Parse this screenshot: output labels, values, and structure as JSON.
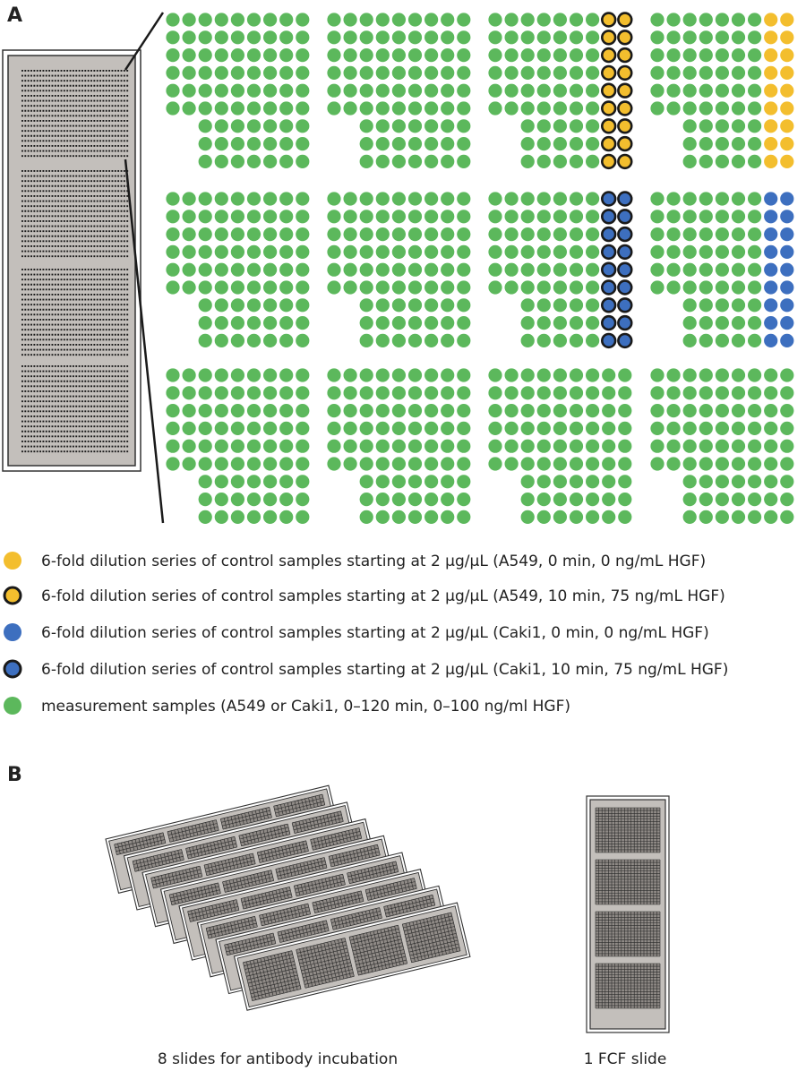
{
  "panels": {
    "a_label": "A",
    "b_label": "B"
  },
  "colors": {
    "green": "#5cb85c",
    "yellow": "#f3be2e",
    "blue": "#3d6fbf",
    "outline": "#1a1a1a",
    "slide_fill": "#c3bfbb",
    "slide_edge": "#333333",
    "spot": "#1a1a1a"
  },
  "legend": [
    {
      "marker": "yellow",
      "outlined": false,
      "text": "6-fold dilution series of control samples starting at 2 µg/µL (A549, 0 min, 0 ng/mL HGF)"
    },
    {
      "marker": "yellow",
      "outlined": true,
      "text": "6-fold dilution series of control samples starting at 2 µg/µL (A549, 10 min, 75 ng/mL HGF)"
    },
    {
      "marker": "blue",
      "outlined": false,
      "text": "6-fold dilution series of control samples starting at 2 µg/µL (Caki1, 0 min, 0 ng/mL HGF)"
    },
    {
      "marker": "blue",
      "outlined": true,
      "text": "6-fold dilution series of control samples starting at 2 µg/µL (Caki1, 10 min, 75 ng/mL HGF)"
    },
    {
      "marker": "green",
      "outlined": false,
      "text": "measurement samples (A549 or Caki1, 0–120 min, 0–100 ng/ml HGF)"
    }
  ],
  "captions": {
    "stack": "8 slides for antibody incubation",
    "fcf": "1 FCF slide"
  },
  "stack_count": 8
}
